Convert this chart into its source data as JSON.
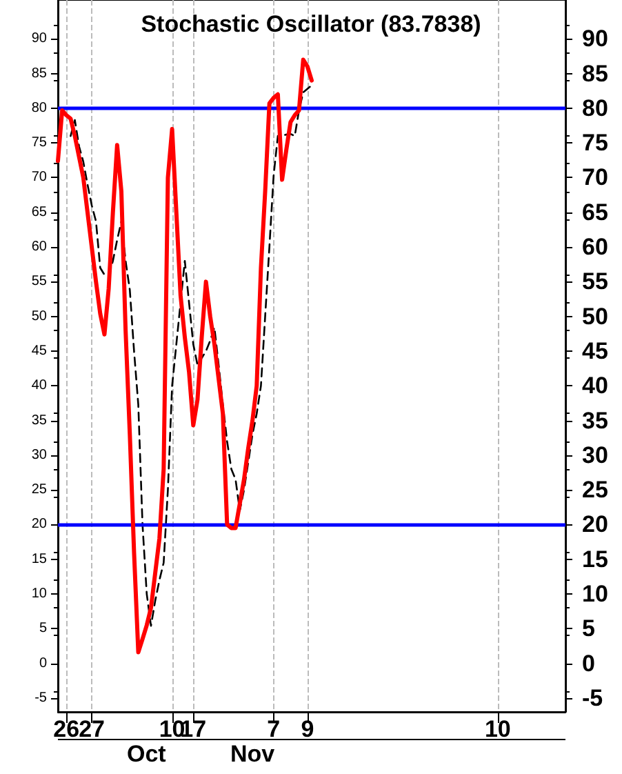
{
  "chart_data": {
    "type": "line",
    "title": "Stochastic Oscillator (83.7838)",
    "annotations": [
      "Oct",
      "Nov"
    ],
    "categories": [
      null,
      null,
      "26",
      null,
      null,
      null,
      null,
      null,
      "27",
      null,
      null,
      null,
      null,
      null,
      null,
      null,
      null,
      null,
      null,
      null,
      null,
      null,
      null,
      null,
      null,
      null,
      null,
      "10",
      null,
      null,
      null,
      null,
      "17",
      null,
      null,
      null,
      null,
      null,
      null,
      null,
      null,
      null,
      null,
      null,
      null,
      null,
      null,
      null,
      null,
      null,
      null,
      "7",
      null,
      null,
      null,
      null,
      null,
      null,
      null,
      "9",
      null,
      null,
      null,
      null,
      null,
      null,
      null,
      null,
      null,
      null,
      null,
      null,
      null,
      null,
      null,
      null,
      null,
      null,
      null,
      null,
      null,
      null,
      null,
      null,
      null,
      null,
      null,
      null,
      null,
      null,
      null,
      null,
      null,
      null,
      null,
      null,
      null,
      null,
      null,
      null,
      null,
      null,
      null,
      null,
      "10",
      null,
      null,
      null,
      null,
      null,
      null,
      null,
      null,
      null,
      null,
      null,
      null,
      null,
      null,
      null,
      null
    ],
    "ylim": [
      -7,
      95.6
    ],
    "yticks": [
      -5,
      0,
      5,
      10,
      15,
      20,
      25,
      30,
      35,
      40,
      45,
      50,
      55,
      60,
      65,
      70,
      75,
      80,
      85,
      90
    ],
    "y2lim": [
      -7,
      95.6
    ],
    "y2ticks": [
      -5,
      0,
      5,
      10,
      15,
      20,
      25,
      30,
      35,
      40,
      45,
      50,
      55,
      60,
      65,
      70,
      75,
      80,
      85,
      90
    ],
    "grid": "x",
    "marker": "none",
    "ref_lines": [
      {
        "axis": "y",
        "value": 80,
        "color": "#0000ff"
      },
      {
        "axis": "y",
        "value": 20,
        "color": "#0000ff"
      }
    ],
    "series": [
      {
        "color": "#ff0000",
        "line_style": "solid",
        "values": [
          72.4,
          79.7,
          79,
          78.5,
          76,
          73,
          70,
          65,
          60,
          55,
          50.4,
          47.4,
          54,
          65,
          74.7,
          68,
          48,
          33,
          16,
          1.6,
          3.5,
          5.5,
          8,
          13,
          18,
          28,
          70,
          77,
          65,
          53,
          47,
          42,
          34.3,
          38,
          47,
          55,
          50,
          46,
          41,
          36,
          20,
          19.5,
          19.5,
          23,
          26.5,
          31,
          35,
          40,
          57,
          68,
          80.7,
          81.5,
          82,
          69.7,
          74,
          78,
          79,
          79.7,
          87,
          86,
          84,
          null,
          null,
          null,
          null,
          null,
          null,
          null,
          null,
          null,
          null,
          null,
          null,
          null,
          null,
          null,
          null,
          null,
          null,
          null,
          null,
          null,
          null,
          null,
          null,
          null,
          null,
          null,
          null,
          null,
          null,
          null,
          null,
          null,
          null,
          null,
          null,
          null,
          null,
          null,
          null,
          null,
          null,
          null,
          null,
          null,
          null,
          null,
          null,
          null,
          null,
          null,
          null,
          null,
          null,
          null,
          null,
          null,
          null,
          null,
          null
        ]
      },
      {
        "color": "#000000",
        "line_style": "dashed",
        "values": [
          null,
          null,
          null,
          76,
          78.3,
          74.5,
          72.3,
          69,
          66,
          63.7,
          57,
          56,
          55.8,
          58,
          61,
          63.7,
          58,
          53.8,
          45,
          37.3,
          20,
          10,
          5.4,
          9,
          12,
          14.5,
          25,
          40,
          46,
          52,
          58,
          52,
          46,
          43,
          44,
          45,
          46.5,
          48.4,
          43,
          37.3,
          32,
          28,
          26.5,
          22,
          25,
          29,
          33,
          36,
          40,
          50,
          60,
          70.3,
          76,
          76.1,
          76.2,
          76.3,
          76,
          79.7,
          82.3,
          82.8,
          83.3,
          null,
          null,
          null,
          null,
          null,
          null,
          null,
          null,
          null,
          null,
          null,
          null,
          null,
          null,
          null,
          null,
          null,
          null,
          null,
          null,
          null,
          null,
          null,
          null,
          null,
          null,
          null,
          null,
          null,
          null,
          null,
          null,
          null,
          null,
          null,
          null,
          null,
          null,
          null,
          null,
          null,
          null,
          null,
          null,
          null,
          null,
          null,
          null,
          null,
          null,
          null,
          null,
          null,
          null,
          null,
          null,
          null,
          null,
          null,
          null
        ]
      }
    ]
  }
}
